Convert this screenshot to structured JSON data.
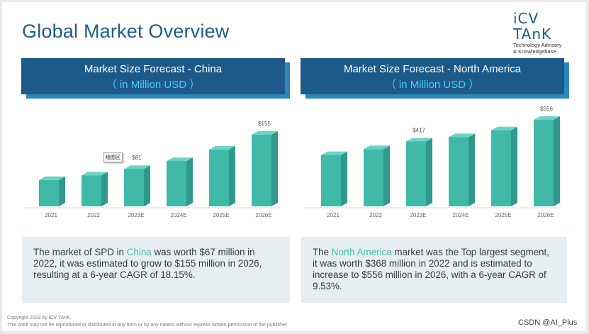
{
  "page": {
    "title": "Global Market Overview",
    "logo": {
      "name": "iCV TAnK",
      "tagline1": "Technology Advisory",
      "tagline2": "& Knowledgebase"
    },
    "footer": {
      "line1": "Copyright  2023 by iCV TAnK.",
      "line2": "This work may not be reproduced or distributed in any form or by any means without express written permission of the publisher."
    },
    "watermark": "CSDN @AI_Plus",
    "tooltip": "绘图区"
  },
  "panels": [
    {
      "header_title": "Market Size Forecast - China",
      "header_unit": "（ in Million USD ）",
      "desc_before": "The market of SPD in ",
      "desc_highlight": "China",
      "desc_after": " was worth $67 million in 2022, it was estimated to grow to $155 million in 2026, resulting at a 6-year CAGR of 18.15%."
    },
    {
      "header_title": "Market Size Forecast - North America",
      "header_unit": "（ in Million USD ）",
      "desc_before": "The ",
      "desc_highlight": "North America",
      "desc_after": " market was the Top largest segment, it was worth $368 million in 2022 and is estimated to increase to $556 million in 2026, with a 6-year CAGR of 9.53%."
    }
  ],
  "colors": {
    "bar_front": "#40b9a9",
    "bar_side": "#2f9a8b",
    "bar_top": "#6fd3c4",
    "header_bg": "#1d5a8a"
  },
  "chart_data": [
    {
      "type": "bar",
      "title": "Market Size Forecast - China",
      "ylabel": "in Million USD",
      "categories": [
        "2021",
        "2022",
        "2023E",
        "2024E",
        "2025E",
        "2026E"
      ],
      "values": [
        57,
        67,
        81,
        98,
        123,
        155
      ],
      "data_labels": [
        "",
        "",
        "$81",
        "",
        "",
        "$155"
      ],
      "ylim": [
        0,
        160
      ]
    },
    {
      "type": "bar",
      "title": "Market Size Forecast - North America",
      "ylabel": "in Million USD",
      "categories": [
        "2021",
        "2022",
        "2023E",
        "2024E",
        "2025E",
        "2026E"
      ],
      "values": [
        330,
        368,
        417,
        445,
        489,
        556
      ],
      "data_labels": [
        "",
        "",
        "$417",
        "",
        "",
        "$556"
      ],
      "ylim": [
        0,
        580
      ]
    }
  ]
}
